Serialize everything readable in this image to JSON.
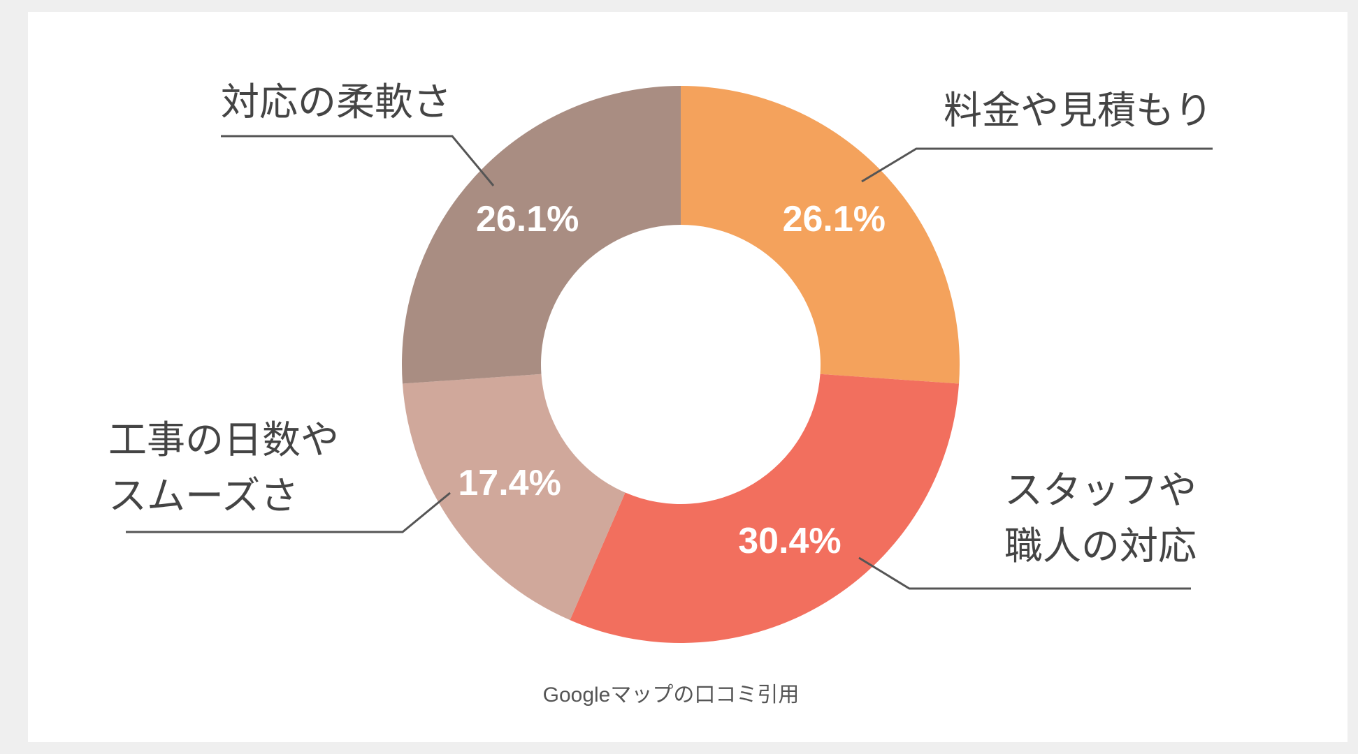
{
  "chart_data": {
    "type": "donut",
    "categories": [
      "料金や見積もり",
      "スタッフや\n職人の対応",
      "工事の日数や\nスムーズさ",
      "対応の柔軟さ"
    ],
    "values": [
      26.1,
      30.4,
      17.4,
      26.1
    ],
    "value_labels": [
      "26.1%",
      "30.4%",
      "17.4%",
      "26.1%"
    ],
    "colors": [
      "#f4a25c",
      "#f26f5e",
      "#d0a89b",
      "#a98d82"
    ],
    "source": "Googleマップの口コミ引用"
  }
}
